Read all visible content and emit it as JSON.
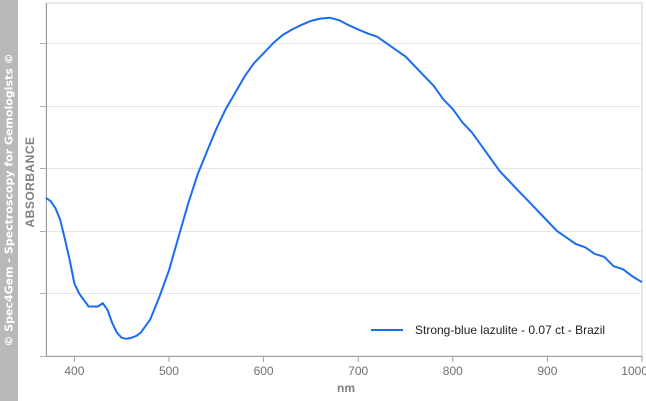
{
  "watermark": "© Spec4Gem - Spectroscopy for Gemologists ©",
  "chart_data": {
    "type": "line",
    "title": "",
    "xlabel": "nm",
    "ylabel": "ABSORBANCE",
    "xlim": [
      370,
      1000
    ],
    "ylim": [
      0,
      1
    ],
    "x_ticks": [
      400,
      500,
      600,
      700,
      800,
      900,
      1000
    ],
    "x_tick_labels": [
      "400",
      "500",
      "600",
      "700",
      "800",
      "900",
      "1000"
    ],
    "y_ticks": [
      0,
      0.2,
      0.4,
      0.6,
      0.8,
      1.0
    ],
    "y_tick_labels_shown": false,
    "grid": "horizontal",
    "legend_position": "bottom-right",
    "series": [
      {
        "name": "Strong-blue lazulite - 0.07 ct - Brazil",
        "color": "#1a6cf0",
        "x": [
          370,
          375,
          380,
          385,
          390,
          395,
          400,
          405,
          410,
          415,
          420,
          425,
          430,
          435,
          440,
          445,
          450,
          455,
          460,
          465,
          470,
          480,
          490,
          500,
          510,
          520,
          530,
          540,
          550,
          560,
          570,
          580,
          590,
          600,
          610,
          620,
          630,
          640,
          650,
          660,
          670,
          680,
          690,
          700,
          710,
          720,
          730,
          740,
          750,
          760,
          770,
          780,
          790,
          800,
          810,
          820,
          830,
          840,
          850,
          860,
          870,
          880,
          890,
          900,
          910,
          920,
          930,
          940,
          950,
          960,
          970,
          980,
          990,
          1000
        ],
        "y": [
          0.45,
          0.43,
          0.4,
          0.36,
          0.3,
          0.24,
          0.19,
          0.16,
          0.14,
          0.12,
          0.12,
          0.12,
          0.13,
          0.11,
          0.07,
          0.04,
          0.025,
          0.022,
          0.025,
          0.03,
          0.04,
          0.08,
          0.15,
          0.23,
          0.33,
          0.43,
          0.52,
          0.59,
          0.66,
          0.72,
          0.77,
          0.82,
          0.86,
          0.89,
          0.92,
          0.945,
          0.962,
          0.976,
          0.988,
          0.995,
          0.998,
          0.99,
          0.975,
          0.962,
          0.95,
          0.94,
          0.92,
          0.9,
          0.88,
          0.85,
          0.82,
          0.79,
          0.75,
          0.72,
          0.68,
          0.65,
          0.61,
          0.57,
          0.53,
          0.5,
          0.47,
          0.44,
          0.41,
          0.38,
          0.35,
          0.33,
          0.31,
          0.3,
          0.28,
          0.26,
          0.25,
          0.23,
          0.21,
          0.2
        ]
      }
    ]
  }
}
